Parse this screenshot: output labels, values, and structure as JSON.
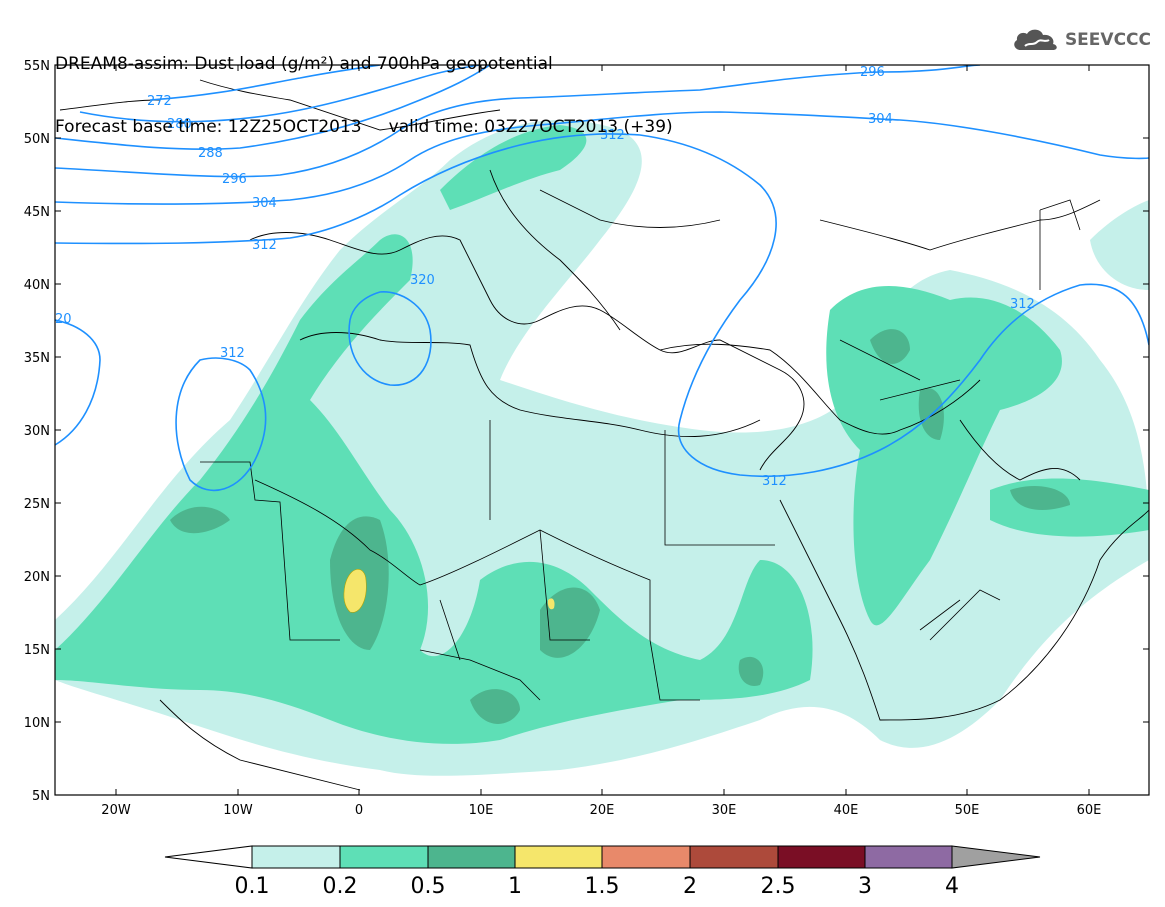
{
  "title": {
    "line1": "DREAM8-assim: Dust load (g/m²) and 700hPa geopotential",
    "line2": "Forecast base time: 12Z25OCT2013     valid time: 03Z27OCT2013 (+39)"
  },
  "logo": {
    "text": "SEEVCCC",
    "icon": "cloud-icon"
  },
  "axes": {
    "lat_labels": [
      "55N",
      "50N",
      "45N",
      "40N",
      "35N",
      "30N",
      "25N",
      "20N",
      "15N",
      "10N",
      "5N"
    ],
    "lon_labels": [
      "20W",
      "10W",
      "0",
      "10E",
      "20E",
      "30E",
      "40E",
      "50E",
      "60E"
    ]
  },
  "contours": {
    "color": "#1e90ff",
    "labels": [
      "272",
      "280",
      "288",
      "296",
      "304",
      "312",
      "320",
      "296",
      "304",
      "312",
      "312",
      "312",
      "20",
      "312"
    ]
  },
  "colorbar": {
    "labels": [
      "0.1",
      "0.2",
      "0.5",
      "1",
      "1.5",
      "2",
      "2.5",
      "3",
      "4"
    ],
    "colors": [
      "#c5f0ea",
      "#5edfb6",
      "#4db58e",
      "#f5e66b",
      "#e8896a",
      "#ad4a3b",
      "#7a0e25",
      "#8e6aa3"
    ],
    "under_color": "#ffffff",
    "over_color": "#a0a0a0"
  },
  "shading": {
    "light": "#c5f0ea",
    "medium": "#5edfb6",
    "dark": "#4db58e",
    "yellow": "#f5e66b"
  }
}
